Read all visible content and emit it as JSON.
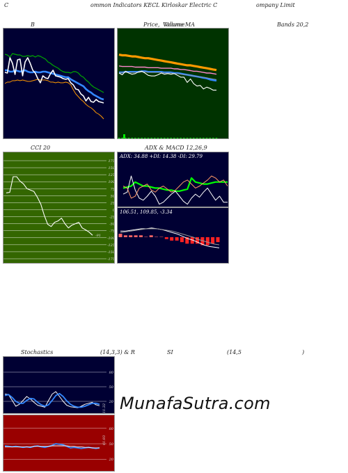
{
  "header": {
    "left": "C",
    "middle": "ommon  Indicators KECL  Kirloskar Electric C",
    "right": "ompany Limit"
  },
  "titles": {
    "bb": "B",
    "pv_a": "Price,",
    "pv_b": "Volume",
    "pv_c": "Volume",
    "ma": "MA",
    "bands": "Bands 20,2",
    "cci": "CCI 20",
    "adx": "ADX  & MACD 12,26,9",
    "stoch_a": "Stochastics",
    "stoch_b": "(14,3,3) & R",
    "stoch_c": "SI",
    "stoch_d": "(14,5",
    "stoch_e": ")"
  },
  "readouts": {
    "adx": "ADX: 34.88  +DI: 14.38  -DI: 29.79",
    "macd": "106.51,  109.85,  -3.34",
    "cci_value": "-91",
    "stoch_value": "11.32",
    "rsi_value": "41.93"
  },
  "watermark": "MunafaSutra.com",
  "colors": {
    "dark_panel": "#000033",
    "price_panel": "#003300",
    "cci_panel": "#336600",
    "rsi_panel": "#990000",
    "grid_white": "#ffffff",
    "blue": "#3388ff",
    "green": "#00bb00",
    "orange": "#ff9900",
    "bright_green": "#00ff00"
  },
  "chart_data": [
    {
      "id": "bollinger",
      "type": "line",
      "series": [
        {
          "role": "upper",
          "color": "#00aa00",
          "values": [
            71,
            70,
            67,
            72,
            71,
            70,
            70,
            68,
            68,
            69,
            68,
            69,
            67,
            69,
            68,
            66,
            64,
            60,
            58,
            55,
            53,
            51,
            48,
            46,
            45,
            45,
            44,
            46,
            46,
            44,
            40,
            38,
            34,
            31,
            27,
            24,
            22,
            20,
            18,
            16
          ]
        },
        {
          "role": "middle",
          "color": "#3388ff",
          "values": [
            48,
            48,
            46,
            46,
            48,
            47,
            46,
            47,
            48,
            46,
            45,
            45,
            46,
            45,
            45,
            46,
            46,
            45,
            44,
            43,
            42,
            41,
            40,
            39,
            38,
            38,
            35,
            33,
            31,
            29,
            27,
            25,
            21,
            18,
            16,
            13,
            11,
            9,
            7,
            6
          ]
        },
        {
          "role": "lower",
          "color": "#ff9900",
          "values": [
            29,
            31,
            31,
            33,
            33,
            34,
            33,
            34,
            33,
            32,
            32,
            33,
            34,
            35,
            34,
            34,
            34,
            33,
            31,
            31,
            30,
            31,
            30,
            30,
            31,
            30,
            27,
            20,
            14,
            10,
            6,
            3,
            -1,
            -4,
            -6,
            -9,
            -13,
            -15,
            -18,
            -22
          ]
        },
        {
          "role": "price",
          "color": "#ffffff",
          "values": [
            45,
            44,
            66,
            58,
            42,
            63,
            64,
            40,
            60,
            66,
            58,
            48,
            44,
            36,
            30,
            40,
            37,
            36,
            43,
            48,
            40,
            39,
            38,
            36,
            35,
            36,
            30,
            27,
            21,
            20,
            14,
            11,
            4,
            9,
            3,
            2,
            6,
            3,
            2,
            1
          ]
        }
      ]
    },
    {
      "id": "price_ma",
      "type": "line",
      "series": [
        {
          "role": "ma_long",
          "color": "#ff9900",
          "values": [
            64,
            63,
            63,
            62,
            61,
            61,
            60,
            59,
            58,
            58,
            57,
            56,
            55,
            54,
            53,
            52,
            51,
            50,
            49,
            48,
            47,
            46,
            46,
            45,
            44,
            43,
            42,
            41,
            40,
            39,
            38
          ]
        },
        {
          "role": "ma_mid",
          "color": "#ff88cc",
          "values": [
            45,
            44,
            44,
            44,
            44,
            43,
            43,
            43,
            43,
            42,
            42,
            42,
            42,
            41,
            41,
            41,
            41,
            40,
            40,
            39,
            39,
            38,
            37,
            36,
            36,
            35,
            34,
            33,
            33,
            32,
            31
          ]
        },
        {
          "role": "ma_blue",
          "color": "#3388ff",
          "values": [
            34,
            34,
            35,
            35,
            35,
            35,
            35,
            36,
            36,
            35,
            35,
            35,
            35,
            35,
            34,
            34,
            34,
            33,
            33,
            32,
            31,
            30,
            29,
            28,
            27,
            26,
            25,
            24,
            22,
            21,
            20
          ]
        },
        {
          "role": "ma_gray",
          "color": "#999999",
          "values": [
            33,
            34,
            34,
            34,
            34,
            34,
            34,
            35,
            35,
            34,
            34,
            34,
            34,
            34,
            33,
            33,
            33,
            32,
            32,
            31,
            30,
            30,
            29,
            28,
            27,
            26,
            26,
            25,
            24,
            23,
            22
          ]
        },
        {
          "role": "price",
          "color": "#ffffff",
          "values": [
            33,
            30,
            36,
            33,
            31,
            32,
            35,
            36,
            33,
            29,
            28,
            28,
            30,
            33,
            31,
            32,
            31,
            32,
            29,
            26,
            26,
            17,
            23,
            15,
            11,
            12,
            6,
            9,
            7,
            4,
            4
          ]
        }
      ],
      "volume": [
        0,
        0,
        0,
        0,
        0,
        0,
        0,
        0,
        0,
        0,
        0,
        0,
        0,
        0,
        0,
        0,
        0,
        0,
        0,
        0,
        0,
        0,
        0,
        0,
        0,
        0,
        0,
        0,
        0,
        0,
        0
      ]
    },
    {
      "id": "cci",
      "type": "line",
      "yticks": [
        175,
        150,
        125,
        100,
        75,
        50,
        25,
        0,
        -25,
        -50,
        -75,
        -100,
        -125,
        -150,
        -175
      ],
      "ylim": [
        -175,
        175
      ],
      "values": [
        60,
        62,
        118,
        118,
        102,
        92,
        75,
        70,
        65,
        45,
        20,
        -20,
        -52,
        -60,
        -45,
        -40,
        -30,
        -50,
        -65,
        -55,
        -50,
        -45,
        -65,
        -72,
        -80,
        -91
      ]
    },
    {
      "id": "adx",
      "type": "line",
      "series": [
        {
          "name": "ADX",
          "color": "#00ff00",
          "values": [
            28,
            29,
            30,
            34,
            32,
            30,
            30,
            29,
            28,
            28,
            27,
            26,
            26,
            25,
            25,
            26,
            27,
            38,
            34,
            33,
            32,
            32,
            33,
            34,
            34,
            34,
            34
          ]
        },
        {
          "name": "+DI",
          "color": "#ffffff",
          "values": [
            22,
            24,
            40,
            26,
            18,
            16,
            20,
            25,
            20,
            12,
            14,
            18,
            22,
            25,
            20,
            15,
            12,
            18,
            22,
            19,
            24,
            28,
            22,
            16,
            20,
            14,
            14
          ]
        },
        {
          "name": "-DI",
          "color": "#ff9966",
          "values": [
            30,
            28,
            18,
            20,
            28,
            30,
            32,
            26,
            24,
            28,
            30,
            27,
            24,
            26,
            30,
            34,
            36,
            32,
            28,
            30,
            33,
            36,
            40,
            38,
            34,
            36,
            30
          ]
        }
      ]
    },
    {
      "id": "macd",
      "type": "line",
      "series": [
        {
          "name": "MACD",
          "color": "#ffffff",
          "values": [
            128,
            128,
            129,
            130,
            131,
            131,
            132,
            131,
            130,
            128,
            126,
            124,
            121,
            118,
            116,
            113,
            110,
            108,
            107,
            106
          ]
        },
        {
          "name": "Signal",
          "color": "#999999",
          "values": [
            126,
            127,
            128,
            129,
            130,
            131,
            131,
            131,
            130,
            129,
            128,
            126,
            124,
            122,
            120,
            117,
            115,
            113,
            111,
            110
          ]
        }
      ],
      "histogram": [
        2,
        1,
        1,
        1,
        1,
        0,
        1,
        0,
        0,
        -1,
        -2,
        -2,
        -3,
        -4,
        -4,
        -4,
        -5,
        -5,
        -4,
        -3
      ]
    },
    {
      "id": "stochastics",
      "type": "line",
      "yticks": [
        80,
        50,
        20
      ],
      "ylim": [
        0,
        100
      ],
      "series": [
        {
          "name": "%K",
          "color": "#ffffff",
          "values": [
            35,
            34,
            22,
            10,
            14,
            22,
            30,
            25,
            18,
            12,
            10,
            8,
            22,
            35,
            40,
            30,
            20,
            12,
            9,
            8,
            7,
            10,
            14,
            16,
            18,
            13,
            11
          ]
        },
        {
          "name": "%D",
          "color": "#3388ff",
          "values": [
            32,
            34,
            28,
            20,
            16,
            16,
            22,
            26,
            25,
            18,
            13,
            10,
            13,
            22,
            32,
            36,
            30,
            21,
            14,
            10,
            8,
            8,
            10,
            13,
            16,
            16,
            14
          ]
        }
      ]
    },
    {
      "id": "rsi",
      "type": "line",
      "yticks": [
        80,
        50,
        20
      ],
      "ylim": [
        0,
        100
      ],
      "series": [
        {
          "name": "RSI",
          "color": "#3388ff",
          "values": [
            46,
            45,
            44,
            45,
            44,
            43,
            44,
            43,
            45,
            46,
            44,
            43,
            45,
            47,
            50,
            49,
            48,
            45,
            42,
            43,
            42,
            41,
            42,
            43,
            42,
            41,
            42
          ]
        },
        {
          "name": "RSI MA",
          "color": "#ffffff",
          "values": [
            44,
            44,
            44,
            44,
            44,
            44,
            44,
            44,
            45,
            45,
            45,
            45,
            45,
            46,
            46,
            46,
            46,
            46,
            45,
            45,
            44,
            44,
            43,
            43,
            42,
            42,
            42
          ]
        }
      ]
    }
  ]
}
